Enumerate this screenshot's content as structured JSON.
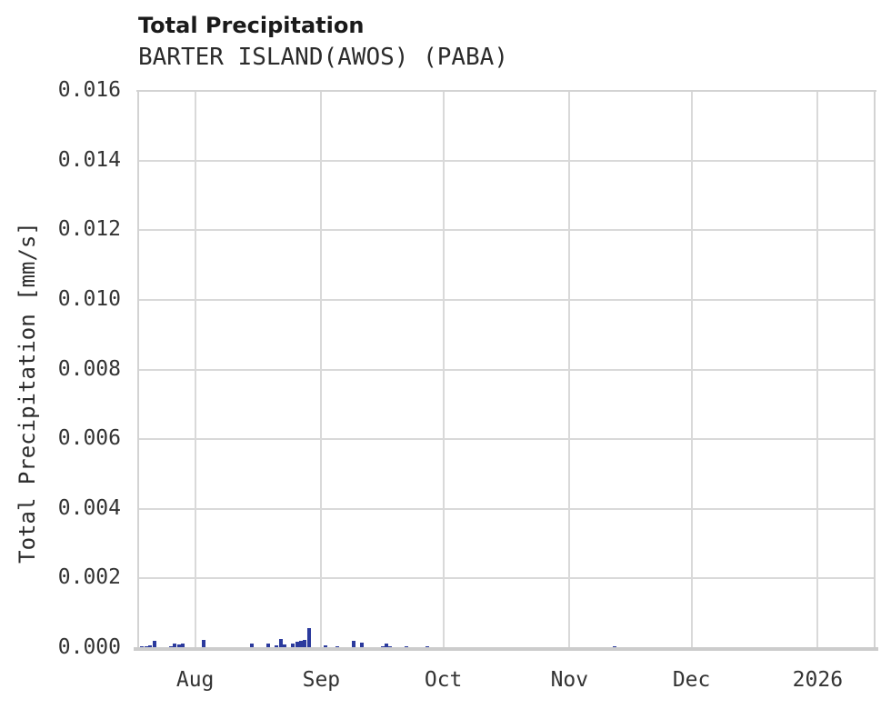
{
  "page": {
    "background": "#ffffff"
  },
  "chart_data": {
    "type": "bar",
    "title": "Total Precipitation",
    "subtitle": "BARTER ISLAND(AWOS) (PABA)",
    "ylabel": "Total Precipitation [mm/s]",
    "xlabel": "",
    "ylim": [
      0,
      0.016
    ],
    "ytick_step": 0.002,
    "ytick_labels": [
      "0.000",
      "0.002",
      "0.004",
      "0.006",
      "0.008",
      "0.010",
      "0.012",
      "0.014",
      "0.016"
    ],
    "x_domain": [
      "2025-07-18",
      "2026-01-15"
    ],
    "x_ticks": [
      {
        "date": "2025-08-01",
        "label": "Aug"
      },
      {
        "date": "2025-09-01",
        "label": "Sep"
      },
      {
        "date": "2025-10-01",
        "label": "Oct"
      },
      {
        "date": "2025-11-01",
        "label": "Nov"
      },
      {
        "date": "2025-12-01",
        "label": "Dec"
      },
      {
        "date": "2026-01-01",
        "label": "2026"
      }
    ],
    "grid": true,
    "legend_position": "none",
    "colors": {
      "bar": "#2b3a9d",
      "grid": "#d9d9d9",
      "spine": "#d3d3d3",
      "title": "#1a1a1a",
      "tick_text": "#333333"
    },
    "series": [
      {
        "name": "Total Precipitation",
        "points": [
          [
            "2025-07-19",
            5e-05
          ],
          [
            "2025-07-20",
            5e-05
          ],
          [
            "2025-07-21",
            8e-05
          ],
          [
            "2025-07-22",
            0.00021
          ],
          [
            "2025-07-26",
            5e-05
          ],
          [
            "2025-07-27",
            0.00013
          ],
          [
            "2025-07-28",
            0.0001
          ],
          [
            "2025-07-29",
            0.00013
          ],
          [
            "2025-08-03",
            0.00024
          ],
          [
            "2025-08-08",
            3e-05
          ],
          [
            "2025-08-15",
            0.00013
          ],
          [
            "2025-08-19",
            0.00013
          ],
          [
            "2025-08-21",
            8e-05
          ],
          [
            "2025-08-22",
            0.00026
          ],
          [
            "2025-08-23",
            0.0001
          ],
          [
            "2025-08-25",
            0.00013
          ],
          [
            "2025-08-26",
            0.00018
          ],
          [
            "2025-08-27",
            0.00021
          ],
          [
            "2025-08-28",
            0.00024
          ],
          [
            "2025-08-29",
            0.00057
          ],
          [
            "2025-09-02",
            8e-05
          ],
          [
            "2025-09-05",
            5e-05
          ],
          [
            "2025-09-09",
            0.00021
          ],
          [
            "2025-09-11",
            0.00016
          ],
          [
            "2025-09-16",
            5e-05
          ],
          [
            "2025-09-17",
            0.00013
          ],
          [
            "2025-09-18",
            5e-05
          ],
          [
            "2025-09-22",
            5e-05
          ],
          [
            "2025-09-27",
            5e-05
          ],
          [
            "2025-11-12",
            5e-05
          ]
        ]
      }
    ]
  }
}
